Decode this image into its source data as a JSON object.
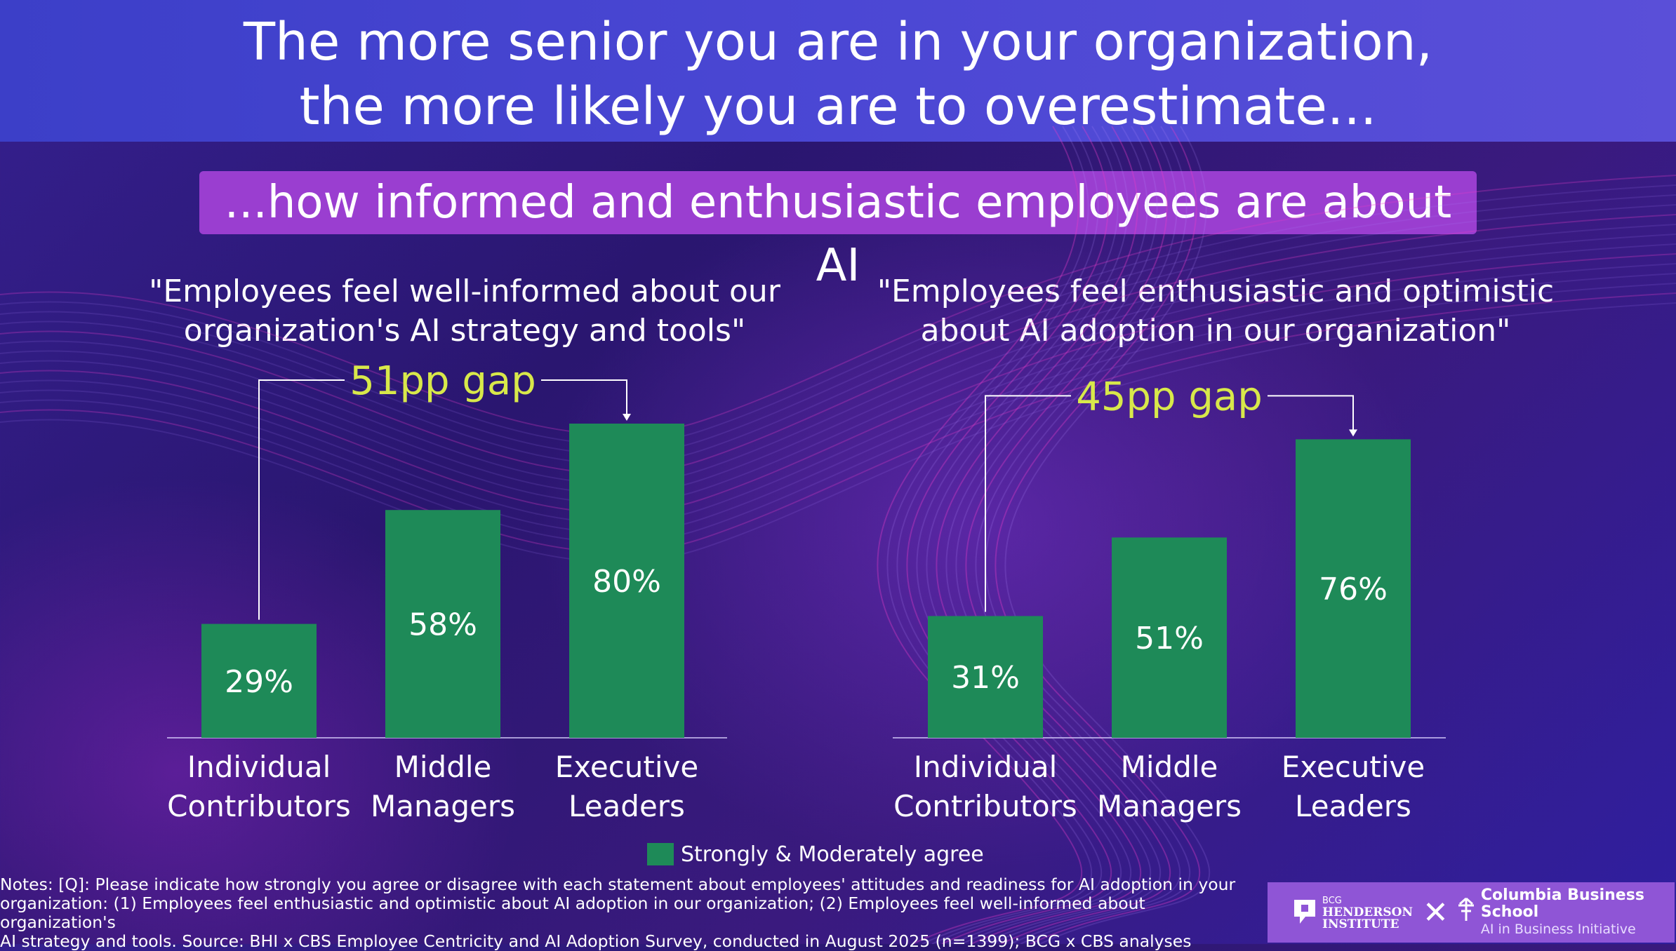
{
  "title": {
    "line1": "The more senior you are in your organization,",
    "line2": "the more likely you are to overestimate..."
  },
  "subtitle": "...how informed and enthusiastic employees are about AI",
  "colors": {
    "bar": "#1e8a58",
    "gap_label": "#d8e84a",
    "subtitle_bg": "#9a3ed0"
  },
  "chart_data": [
    {
      "type": "bar",
      "title": "\"Employees feel well-informed about our organization's AI strategy and tools\"",
      "title_lines": [
        "\"Employees feel well-informed about our",
        "organization's AI strategy and tools\""
      ],
      "categories": [
        "Individual Contributors",
        "Middle Managers",
        "Executive Leaders"
      ],
      "category_lines": [
        [
          "Individual",
          "Contributors"
        ],
        [
          "Middle",
          "Managers"
        ],
        [
          "Executive",
          "Leaders"
        ]
      ],
      "values": [
        29,
        58,
        80
      ],
      "value_labels": [
        "29%",
        "58%",
        "80%"
      ],
      "gap_label": "51pp gap",
      "series": [
        {
          "name": "Strongly & Moderately agree",
          "values": [
            29,
            58,
            80
          ]
        }
      ]
    },
    {
      "type": "bar",
      "title": "\"Employees feel enthusiastic and optimistic about AI adoption in our organization\"",
      "title_lines": [
        "\"Employees feel enthusiastic and optimistic",
        "about AI adoption in our organization\""
      ],
      "categories": [
        "Individual Contributors",
        "Middle Managers",
        "Executive Leaders"
      ],
      "category_lines": [
        [
          "Individual",
          "Contributors"
        ],
        [
          "Middle",
          "Managers"
        ],
        [
          "Executive",
          "Leaders"
        ]
      ],
      "values": [
        31,
        51,
        76
      ],
      "value_labels": [
        "31%",
        "51%",
        "76%"
      ],
      "gap_label": "45pp gap",
      "series": [
        {
          "name": "Strongly & Moderately agree",
          "values": [
            31,
            51,
            76
          ]
        }
      ]
    }
  ],
  "legend": {
    "label": "Strongly & Moderately agree"
  },
  "notes": [
    "Notes: [Q]: Please indicate how strongly you agree or disagree with each statement about employees' attitudes and readiness for AI adoption in your",
    "organization: (1) Employees feel enthusiastic and optimistic about AI adoption in our organization; (2) Employees feel well-informed about organization's",
    "AI strategy and tools. Source: BHI x CBS Employee Centricity and AI Adoption Survey, conducted in August 2025 (n=1399); BCG x CBS analyses"
  ],
  "logos": {
    "bcg_small": "BCG",
    "bcg_line1": "HENDERSON",
    "bcg_line2": "INSTITUTE",
    "cross": "✕",
    "cbs_name": "Columbia Business School",
    "cbs_sub": "AI in Business Initiative"
  }
}
